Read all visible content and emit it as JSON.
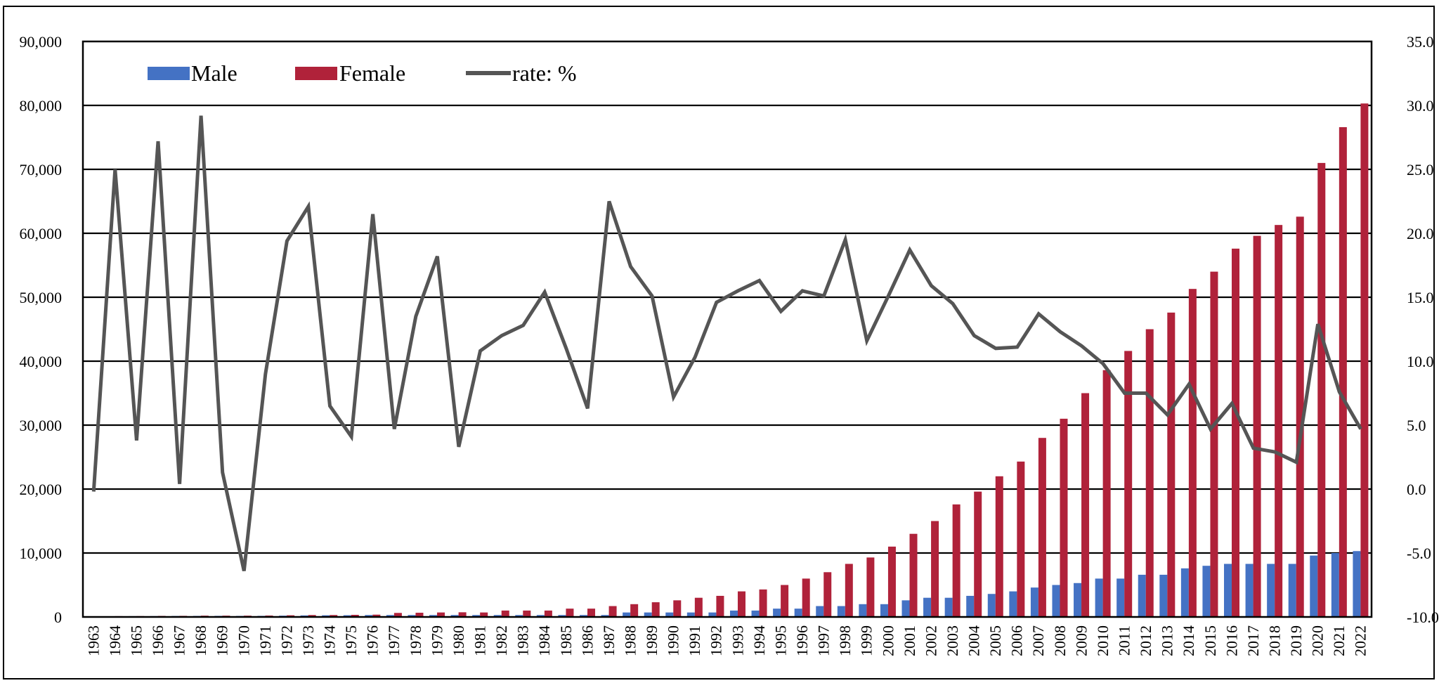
{
  "chart_data": {
    "type": "bar",
    "title": "",
    "xlabel": "",
    "ylabel": "",
    "y2label": "",
    "categories": [
      "1963",
      "1964",
      "1965",
      "1966",
      "1967",
      "1968",
      "1969",
      "1970",
      "1971",
      "1972",
      "1973",
      "1974",
      "1975",
      "1976",
      "1977",
      "1978",
      "1979",
      "1980",
      "1981",
      "1982",
      "1983",
      "1984",
      "1985",
      "1986",
      "1987",
      "1988",
      "1989",
      "1990",
      "1991",
      "1992",
      "1993",
      "1994",
      "1995",
      "1996",
      "1997",
      "1998",
      "1999",
      "2000",
      "2001",
      "2002",
      "2003",
      "2004",
      "2005",
      "2006",
      "2007",
      "2008",
      "2009",
      "2010",
      "2011",
      "2012",
      "2013",
      "2014",
      "2015",
      "2016",
      "2017",
      "2018",
      "2019",
      "2020",
      "2021",
      "2022"
    ],
    "series": [
      {
        "name": "Male",
        "type": "bar",
        "axis": "left",
        "color": "#4472C4",
        "values": [
          100,
          100,
          120,
          130,
          150,
          160,
          170,
          160,
          170,
          200,
          240,
          260,
          270,
          300,
          300,
          300,
          300,
          300,
          300,
          300,
          300,
          300,
          300,
          300,
          300,
          700,
          700,
          700,
          700,
          700,
          1000,
          1000,
          1300,
          1300,
          1700,
          1700,
          2000,
          2000,
          2600,
          3000,
          3000,
          3300,
          3600,
          4000,
          4600,
          5000,
          5300,
          6000,
          6000,
          6600,
          6600,
          7600,
          8000,
          8300,
          8300,
          8300,
          8300,
          9600,
          10000,
          10300
        ]
      },
      {
        "name": "Female",
        "type": "bar",
        "axis": "left",
        "color": "#B0223A",
        "values": [
          100,
          120,
          130,
          160,
          170,
          200,
          200,
          200,
          220,
          260,
          300,
          300,
          330,
          360,
          630,
          660,
          700,
          730,
          700,
          1000,
          1000,
          1000,
          1300,
          1300,
          1700,
          2000,
          2300,
          2600,
          3000,
          3300,
          4000,
          4300,
          5000,
          6000,
          7000,
          8300,
          9300,
          11000,
          13000,
          15000,
          17600,
          19600,
          22000,
          24300,
          28000,
          31000,
          35000,
          38600,
          41600,
          45000,
          47600,
          51300,
          54000,
          57600,
          59600,
          61300,
          62600,
          71000,
          76600,
          80300
        ]
      },
      {
        "name": "rate: %",
        "type": "line",
        "axis": "right",
        "color": "#555555",
        "values": [
          -0.2,
          25.0,
          3.8,
          27.2,
          0.4,
          29.2,
          1.3,
          -6.4,
          9.0,
          19.4,
          22.1,
          6.5,
          4.1,
          21.5,
          4.7,
          13.5,
          18.2,
          3.3,
          10.8,
          12.0,
          12.8,
          15.4,
          11.0,
          6.3,
          22.5,
          17.4,
          15.1,
          7.2,
          10.3,
          14.6,
          15.5,
          16.3,
          13.9,
          15.5,
          15.1,
          19.5,
          11.6,
          15.1,
          18.7,
          15.9,
          14.5,
          12.0,
          11.0,
          11.1,
          13.7,
          12.3,
          11.2,
          9.8,
          7.5,
          7.5,
          5.8,
          8.2,
          4.7,
          6.7,
          3.2,
          2.9,
          2.1,
          12.9,
          7.6,
          4.7
        ]
      }
    ],
    "yticks": [
      "0",
      "10,000",
      "20,000",
      "30,000",
      "40,000",
      "50,000",
      "60,000",
      "70,000",
      "80,000",
      "90,000"
    ],
    "y2ticks": [
      "-10.0",
      "-5.0",
      "0.0",
      "5.0",
      "10.0",
      "15.0",
      "20.0",
      "25.0",
      "30.0",
      "35.0"
    ],
    "ylim": [
      0,
      90000
    ],
    "y2lim": [
      -10,
      35
    ],
    "grid": true,
    "legend": "top-left"
  }
}
